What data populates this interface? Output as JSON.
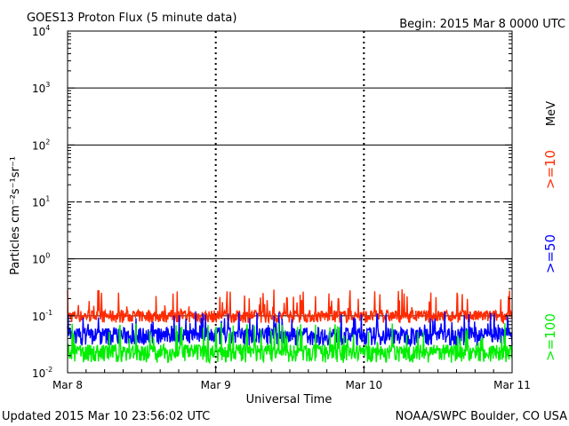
{
  "chart_data": {
    "type": "line",
    "title": "GOES13 Proton Flux (5 minute data)",
    "begin": "Begin: 2015 Mar 8 0000 UTC",
    "xlabel": "Universal Time",
    "ylabel": "Particles cm⁻²s⁻¹sr⁻¹",
    "y_scale": "log",
    "ylim": [
      0.01,
      10000
    ],
    "y_tick_labels": [
      {
        "base": "10",
        "exp": "-2",
        "value": 0.01
      },
      {
        "base": "10",
        "exp": "-1",
        "value": 0.1
      },
      {
        "base": "10",
        "exp": "0",
        "value": 1
      },
      {
        "base": "10",
        "exp": "1",
        "value": 10
      },
      {
        "base": "10",
        "exp": "2",
        "value": 100
      },
      {
        "base": "10",
        "exp": "3",
        "value": 1000
      },
      {
        "base": "10",
        "exp": "4",
        "value": 10000
      }
    ],
    "x_tick_labels": [
      "Mar 8",
      "Mar 9",
      "Mar 10",
      "Mar 11"
    ],
    "xlim_days": [
      0,
      3
    ],
    "thresholds": [
      {
        "value": 10,
        "style": "dashed"
      },
      {
        "value": 1,
        "style": "solid"
      },
      {
        "value": 100,
        "style": "solid"
      },
      {
        "value": 1000,
        "style": "solid"
      },
      {
        "value": 0.1,
        "style": "solid"
      }
    ],
    "series": [
      {
        "name": ">=10",
        "color": "#ff2a00",
        "baseline": 0.1,
        "low": 0.075,
        "high": 0.3
      },
      {
        "name": ">=50",
        "color": "#0000ff",
        "baseline": 0.05,
        "low": 0.03,
        "high": 0.12
      },
      {
        "name": ">=100",
        "color": "#00ee00",
        "baseline": 0.025,
        "low": 0.015,
        "high": 0.075
      }
    ],
    "legend_unit": "MeV",
    "grid": false
  },
  "footer": {
    "updated": "Updated 2015 Mar 10 23:56:02 UTC",
    "source": "NOAA/SWPC Boulder, CO USA"
  }
}
